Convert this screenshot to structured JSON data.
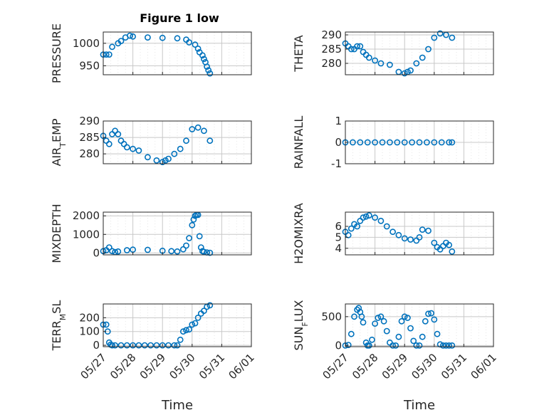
{
  "figure": {
    "title": "Figure 1 low"
  },
  "colors": {
    "marker": "#0072BD",
    "axis": "#262626",
    "grid": "#c8c8c8",
    "background": "#ffffff"
  },
  "chart_data": [
    {
      "id": "pressure",
      "type": "scatter",
      "ylabel": "PRESSURE",
      "ylabel_sub": "",
      "xlim": [
        "05/27",
        "06/01"
      ],
      "ylim": [
        930,
        1025
      ],
      "yticks": [
        950,
        1000
      ],
      "xtick_labels": [],
      "grid": true,
      "marker": "open-circle",
      "x": [
        0.0,
        0.1,
        0.2,
        0.3,
        0.5,
        0.6,
        0.75,
        0.9,
        1.0,
        1.5,
        2.0,
        2.5,
        2.8,
        2.9,
        3.1,
        3.2,
        3.25,
        3.35,
        3.4,
        3.45,
        3.5,
        3.55,
        3.6
      ],
      "y": [
        975,
        975,
        975,
        992,
        1000,
        1005,
        1013,
        1017,
        1015,
        1013,
        1012,
        1011,
        1008,
        1002,
        997,
        988,
        980,
        973,
        965,
        958,
        948,
        940,
        933
      ]
    },
    {
      "id": "theta",
      "type": "scatter",
      "ylabel": "THETA",
      "ylabel_sub": "",
      "xlim": [
        "05/27",
        "06/01"
      ],
      "ylim": [
        276,
        291
      ],
      "yticks": [
        280,
        285,
        290
      ],
      "xtick_labels": [],
      "grid": true,
      "marker": "open-circle",
      "x": [
        0.0,
        0.1,
        0.2,
        0.3,
        0.4,
        0.5,
        0.6,
        0.7,
        0.8,
        1.0,
        1.2,
        1.5,
        1.8,
        2.0,
        2.1,
        2.2,
        2.4,
        2.6,
        2.8,
        3.0,
        3.2,
        3.4,
        3.6
      ],
      "y": [
        287,
        286,
        285,
        285,
        286,
        286,
        284,
        283,
        282,
        281,
        280,
        279.5,
        277,
        276.5,
        277,
        277.5,
        280,
        282,
        285,
        289,
        290.5,
        290,
        289
      ]
    },
    {
      "id": "air_temp",
      "type": "scatter",
      "ylabel": "AIR",
      "ylabel_sub": "T",
      "ylabel_suffix": "EMP",
      "xlim": [
        "05/27",
        "06/01"
      ],
      "ylim": [
        277,
        290
      ],
      "yticks": [
        280,
        285,
        290
      ],
      "xtick_labels": [],
      "grid": true,
      "marker": "open-circle",
      "x": [
        0.0,
        0.1,
        0.2,
        0.3,
        0.4,
        0.5,
        0.6,
        0.7,
        0.8,
        1.0,
        1.2,
        1.5,
        1.8,
        2.0,
        2.1,
        2.2,
        2.4,
        2.6,
        2.8,
        3.0,
        3.2,
        3.4,
        3.6
      ],
      "y": [
        285.5,
        284,
        283,
        286,
        287,
        286,
        284,
        283,
        282,
        281.5,
        281,
        279,
        278,
        277.5,
        278,
        278.5,
        280,
        281.5,
        284,
        287.5,
        288,
        287,
        284
      ]
    },
    {
      "id": "rainfall",
      "type": "scatter",
      "ylabel": "RAINFALL",
      "ylabel_sub": "",
      "xlim": [
        "05/27",
        "06/01"
      ],
      "ylim": [
        -1,
        1
      ],
      "yticks": [
        -1,
        0,
        1
      ],
      "xtick_labels": [],
      "grid": true,
      "marker": "open-circle",
      "x": [
        0.0,
        0.25,
        0.5,
        0.75,
        1.0,
        1.25,
        1.5,
        1.75,
        2.0,
        2.25,
        2.5,
        2.75,
        3.0,
        3.25,
        3.5,
        3.6
      ],
      "y": [
        0,
        0,
        0,
        0,
        0,
        0,
        0,
        0,
        0,
        0,
        0,
        0,
        0,
        0,
        0,
        0
      ]
    },
    {
      "id": "mixdepth",
      "type": "scatter",
      "ylabel": "MIXDEPTH",
      "ylabel_sub": "",
      "xlim": [
        "05/27",
        "06/01"
      ],
      "ylim": [
        -100,
        2200
      ],
      "yticks": [
        0,
        1000,
        2000
      ],
      "xtick_labels": [],
      "grid": true,
      "marker": "open-circle",
      "x": [
        0.0,
        0.1,
        0.2,
        0.3,
        0.4,
        0.5,
        0.8,
        1.0,
        1.5,
        2.0,
        2.3,
        2.5,
        2.7,
        2.8,
        2.9,
        3.0,
        3.05,
        3.1,
        3.15,
        3.2,
        3.25,
        3.3,
        3.35,
        3.4,
        3.5,
        3.6
      ],
      "y": [
        100,
        150,
        300,
        100,
        50,
        80,
        150,
        180,
        170,
        120,
        100,
        80,
        200,
        400,
        800,
        1500,
        1800,
        2000,
        2050,
        2050,
        900,
        300,
        100,
        60,
        30,
        10
      ]
    },
    {
      "id": "h2omixra",
      "type": "scatter",
      "ylabel": "H2OMIXRA",
      "ylabel_sub": "",
      "xlim": [
        "05/27",
        "06/01"
      ],
      "ylim": [
        3.4,
        7.3
      ],
      "yticks": [
        4,
        5,
        6
      ],
      "xtick_labels": [],
      "grid": true,
      "marker": "open-circle",
      "x": [
        0.0,
        0.1,
        0.2,
        0.3,
        0.4,
        0.5,
        0.6,
        0.7,
        0.8,
        1.0,
        1.2,
        1.4,
        1.6,
        1.8,
        2.0,
        2.2,
        2.4,
        2.5,
        2.6,
        2.8,
        3.0,
        3.1,
        3.2,
        3.3,
        3.4,
        3.5,
        3.6
      ],
      "y": [
        5.5,
        5.2,
        5.8,
        6.2,
        6.0,
        6.5,
        6.8,
        6.9,
        7.0,
        6.8,
        6.5,
        6.0,
        5.5,
        5.2,
        4.9,
        4.8,
        4.7,
        5.0,
        5.7,
        5.6,
        4.5,
        4.1,
        3.9,
        4.2,
        4.5,
        4.3,
        3.7
      ]
    },
    {
      "id": "terr_msl",
      "type": "scatter",
      "ylabel": "TERR",
      "ylabel_sub": "M",
      "ylabel_suffix": "SL",
      "xlim": [
        "05/27",
        "06/01"
      ],
      "ylim": [
        -10,
        300
      ],
      "yticks": [
        0,
        100,
        200
      ],
      "xtick_labels": [
        "05/27",
        "05/28",
        "05/29",
        "05/30",
        "05/31",
        "06/01"
      ],
      "xlabel": "Time",
      "grid": true,
      "marker": "open-circle",
      "x": [
        0.0,
        0.1,
        0.15,
        0.2,
        0.25,
        0.3,
        0.4,
        0.6,
        0.8,
        1.0,
        1.2,
        1.4,
        1.6,
        1.8,
        2.0,
        2.2,
        2.4,
        2.5,
        2.6,
        2.7,
        2.8,
        2.9,
        3.0,
        3.1,
        3.2,
        3.3,
        3.4,
        3.5,
        3.6
      ],
      "y": [
        150,
        150,
        100,
        20,
        5,
        0,
        0,
        0,
        0,
        0,
        0,
        0,
        0,
        0,
        0,
        0,
        0,
        0,
        40,
        100,
        110,
        115,
        150,
        160,
        200,
        230,
        250,
        280,
        290
      ]
    },
    {
      "id": "sun_flux",
      "type": "scatter",
      "ylabel": "SUN",
      "ylabel_sub": "F",
      "ylabel_suffix": "LUX",
      "xlim": [
        "05/27",
        "06/01"
      ],
      "ylim": [
        -20,
        720
      ],
      "yticks": [
        0,
        500
      ],
      "xtick_labels": [
        "05/27",
        "05/28",
        "05/29",
        "05/30",
        "05/31",
        "06/01"
      ],
      "xlabel": "Time",
      "grid": true,
      "marker": "open-circle",
      "x": [
        0.0,
        0.1,
        0.2,
        0.3,
        0.4,
        0.45,
        0.5,
        0.55,
        0.6,
        0.7,
        0.75,
        0.8,
        0.9,
        1.0,
        1.1,
        1.2,
        1.3,
        1.4,
        1.5,
        1.6,
        1.7,
        1.8,
        1.9,
        2.0,
        2.1,
        2.2,
        2.3,
        2.4,
        2.5,
        2.6,
        2.7,
        2.8,
        2.9,
        3.0,
        3.1,
        3.2,
        3.3,
        3.4,
        3.5,
        3.6
      ],
      "y": [
        0,
        10,
        200,
        500,
        620,
        650,
        580,
        500,
        400,
        50,
        0,
        0,
        100,
        380,
        480,
        500,
        420,
        250,
        50,
        0,
        0,
        150,
        420,
        500,
        480,
        300,
        80,
        0,
        0,
        150,
        420,
        550,
        560,
        450,
        200,
        20,
        0,
        0,
        0,
        0
      ]
    }
  ]
}
